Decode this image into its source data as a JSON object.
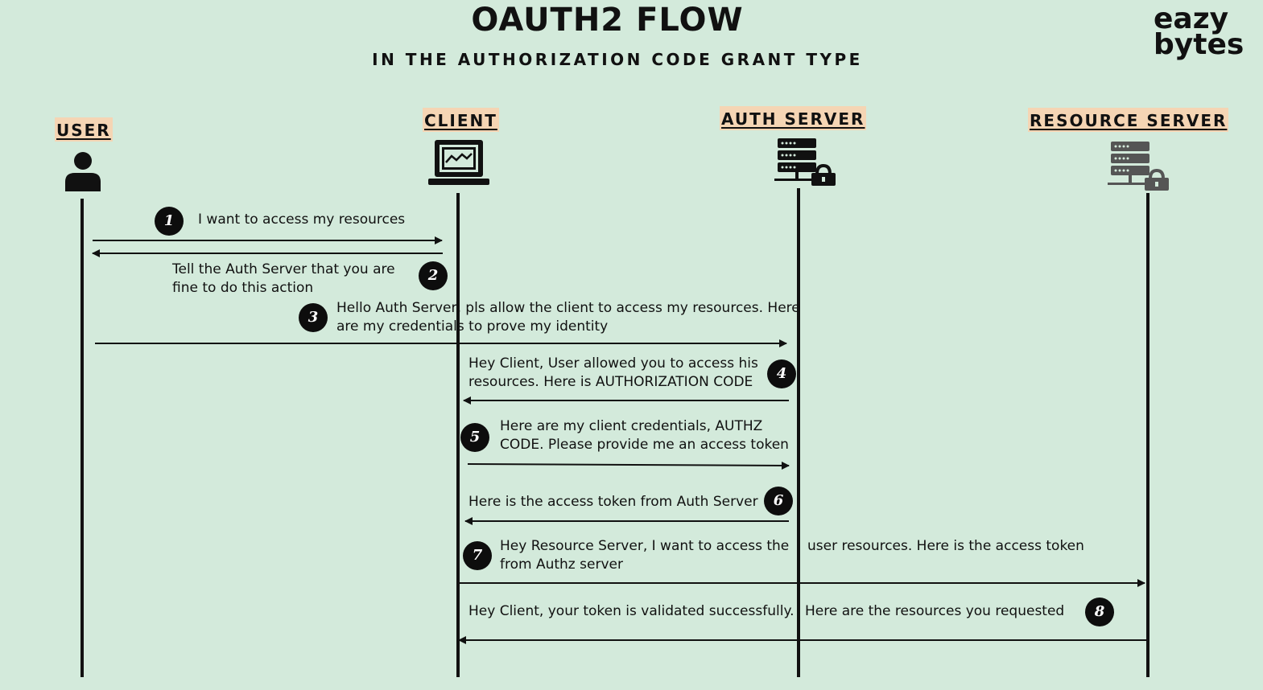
{
  "header": {
    "title": "OAUTH2 FLOW",
    "subtitle": "IN THE AUTHORIZATION CODE GRANT TYPE"
  },
  "logo": {
    "line1": "eazy",
    "line2": "bytes"
  },
  "actors": {
    "user": {
      "label": "USER",
      "icon": "user-icon"
    },
    "client": {
      "label": "CLIENT",
      "icon": "laptop-chart-icon"
    },
    "auth_server": {
      "label": "AUTH SERVER",
      "icon": "server-lock-icon"
    },
    "resource_server": {
      "label": "RESOURCE SERVER",
      "icon": "server-lock-icon"
    }
  },
  "steps": [
    {
      "number": "1",
      "line1": "I want to access my resources",
      "line2": ""
    },
    {
      "number": "2",
      "line1": "Tell the Auth Server that you are",
      "line2": "fine  to do this action"
    },
    {
      "number": "3",
      "line1": "Hello Auth Server, pls allow the client to access my resources. Here",
      "line2": "are my credentials to prove my identity"
    },
    {
      "number": "4",
      "line1": "Hey Client, User allowed you to access his",
      "line2": "resources. Here is AUTHORIZATION CODE"
    },
    {
      "number": "5",
      "line1": "Here are my client credentials, AUTHZ",
      "line2": "CODE. Please provide me an access token"
    },
    {
      "number": "6",
      "line1": "Here is the access token from Auth Server",
      "line2": ""
    },
    {
      "number": "7",
      "line1": "Hey Resource Server,  I want to access the",
      "line1b": "user resources. Here is the access token",
      "line2": "from Authz server"
    },
    {
      "number": "8",
      "line1": "Hey Client, your token is validated successfully.",
      "line1b": "Here are the resources you requested",
      "line2": ""
    }
  ]
}
